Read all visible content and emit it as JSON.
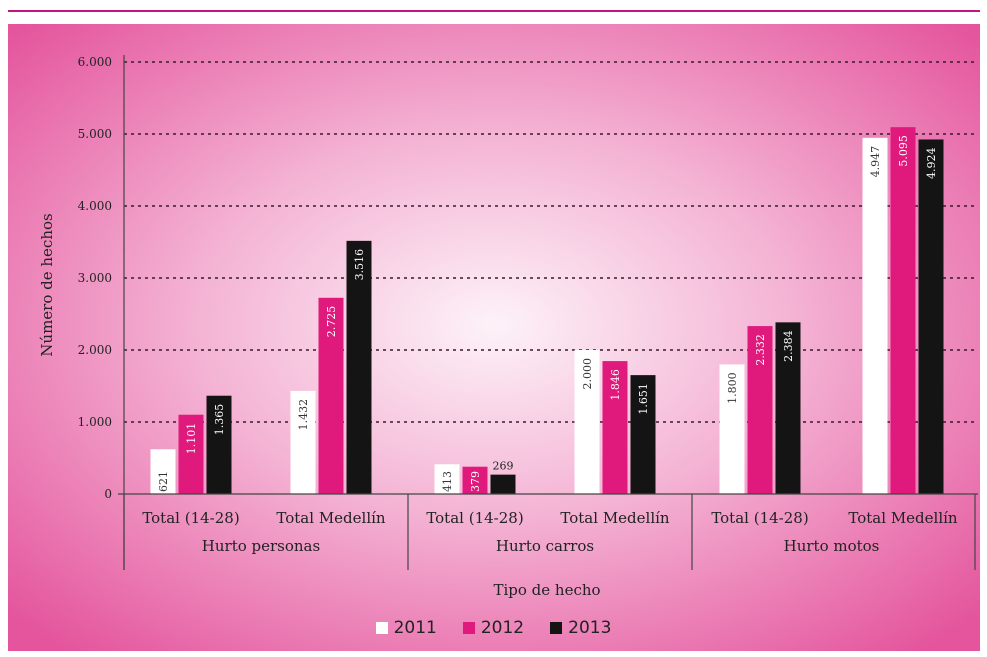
{
  "chart_data": {
    "type": "bar",
    "ylabel": "Número de hechos",
    "xlabel": "Tipo de hecho",
    "ylim": [
      0,
      6000
    ],
    "yticks": [
      "0",
      "1.000",
      "2.000",
      "3.000",
      "4.000",
      "5.000",
      "6.000"
    ],
    "ytick_values": [
      0,
      1000,
      2000,
      3000,
      4000,
      5000,
      6000
    ],
    "grid": true,
    "groups": [
      {
        "label": "Hurto personas",
        "categories": [
          "Total (14-28)",
          "Total Medellín"
        ]
      },
      {
        "label": "Hurto carros",
        "categories": [
          "Total (14-28)",
          "Total Medellín"
        ]
      },
      {
        "label": "Hurto motos",
        "categories": [
          "Total (14-28)",
          "Total Medellín"
        ]
      }
    ],
    "series": [
      {
        "name": "2011",
        "color": "#ffffff",
        "text_color": "#333333",
        "values": [
          621,
          1432,
          413,
          2000,
          1800,
          4947
        ],
        "labels": [
          "621",
          "1.432",
          "413",
          "2.000",
          "1.800",
          "4.947"
        ]
      },
      {
        "name": "2012",
        "color": "#e0197d",
        "text_color": "#ffffff",
        "values": [
          1101,
          2725,
          379,
          1846,
          2332,
          5095
        ],
        "labels": [
          "1.101",
          "2.725",
          "379",
          "1.846",
          "2.332",
          "5.095"
        ]
      },
      {
        "name": "2013",
        "color": "#141414",
        "text_color": "#ffffff",
        "values": [
          1365,
          3516,
          269,
          1651,
          2384,
          4924
        ],
        "labels": [
          "1.365",
          "3.516",
          "269",
          "1.651",
          "2.384",
          "4.924"
        ]
      }
    ],
    "legend_position": "bottom-center"
  }
}
